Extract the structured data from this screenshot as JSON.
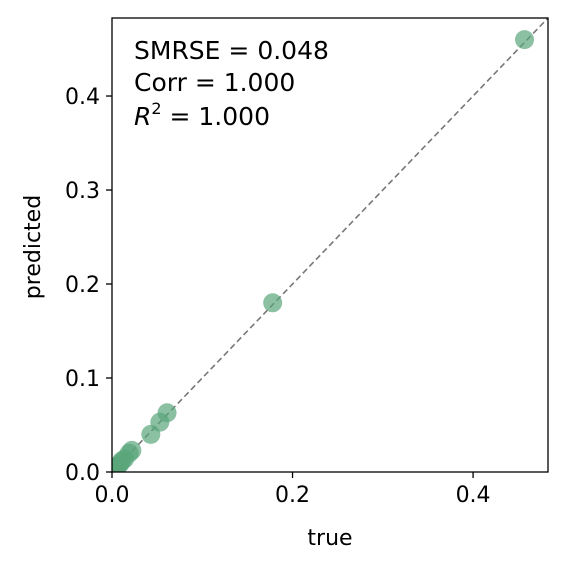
{
  "chart_data": {
    "type": "scatter",
    "xlabel": "true",
    "ylabel": "predicted",
    "xlim": [
      0,
      0.483
    ],
    "ylim": [
      0,
      0.483
    ],
    "x_ticks": [
      0.0,
      0.2,
      0.4
    ],
    "y_ticks": [
      0.0,
      0.1,
      0.2,
      0.3,
      0.4
    ],
    "x_tick_labels": [
      "0.0",
      "0.2",
      "0.4"
    ],
    "y_tick_labels": [
      "0.0",
      "0.1",
      "0.2",
      "0.3",
      "0.4"
    ],
    "grid": false,
    "reference_line": "y = x (dashed gray)",
    "point_color": "#5aa57a",
    "line_color": "#777777",
    "points": [
      {
        "x": 0.457,
        "y": 0.46
      },
      {
        "x": 0.178,
        "y": 0.18
      },
      {
        "x": 0.061,
        "y": 0.063
      },
      {
        "x": 0.053,
        "y": 0.053
      },
      {
        "x": 0.043,
        "y": 0.04
      },
      {
        "x": 0.022,
        "y": 0.023
      },
      {
        "x": 0.019,
        "y": 0.02
      },
      {
        "x": 0.014,
        "y": 0.014
      },
      {
        "x": 0.011,
        "y": 0.012
      },
      {
        "x": 0.009,
        "y": 0.009
      },
      {
        "x": 0.007,
        "y": 0.007
      },
      {
        "x": 0.005,
        "y": 0.005
      },
      {
        "x": 0.003,
        "y": 0.003
      }
    ],
    "annotations": {
      "smrse": "SMRSE = 0.048",
      "corr": "Corr = 1.000",
      "r2_symbol": "R",
      "r2_sup": "2",
      "r2_value": " = 1.000"
    }
  }
}
